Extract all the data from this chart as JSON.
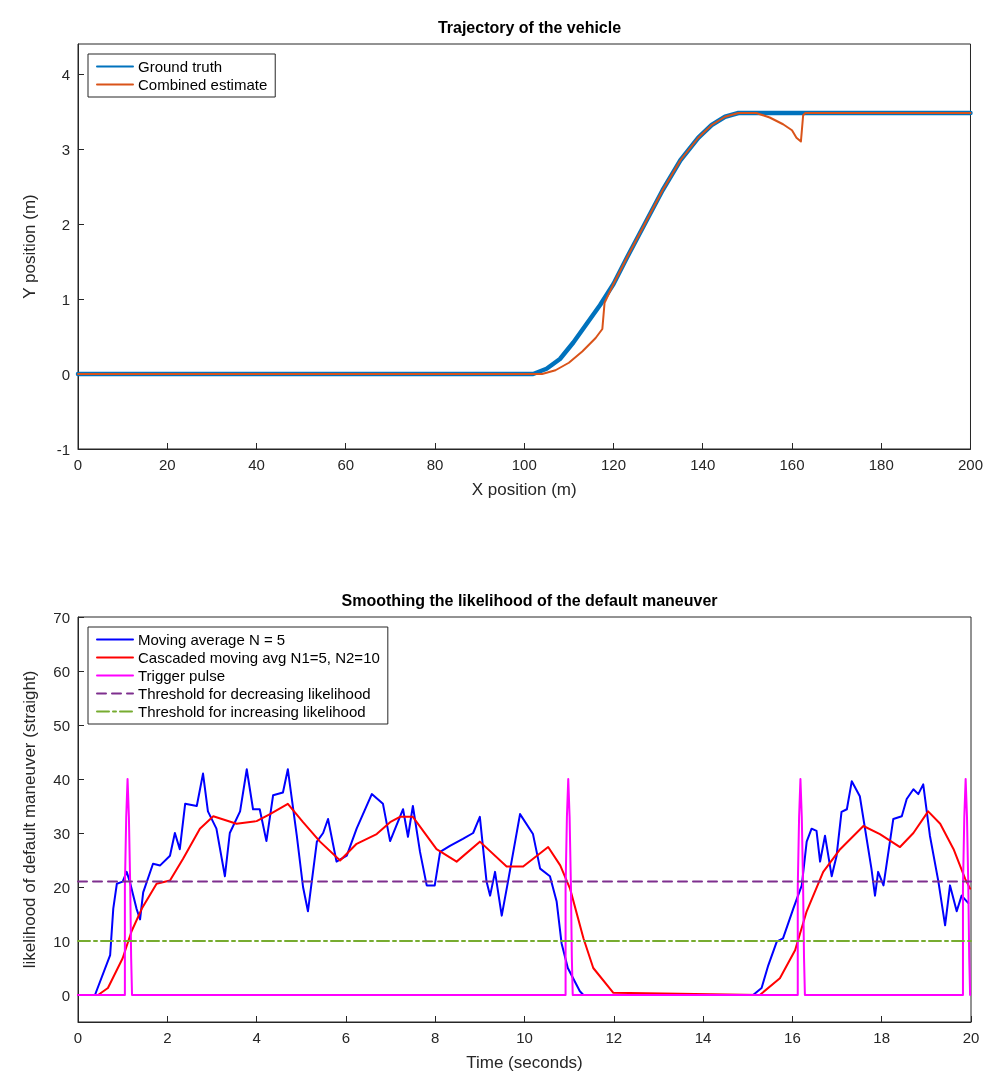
{
  "chart_data": [
    {
      "type": "line",
      "title": "Trajectory of the vehicle",
      "xlabel": "X position (m)",
      "ylabel": "Y position (m)",
      "xlim": [
        0,
        200
      ],
      "ylim": [
        -1,
        4.4
      ],
      "xticks": [
        0,
        20,
        40,
        60,
        80,
        100,
        120,
        140,
        160,
        180,
        200
      ],
      "yticks": [
        -1,
        0,
        1,
        2,
        3,
        4
      ],
      "legend": "top left",
      "grid": false,
      "line_style": "solid",
      "series": [
        {
          "name": "Ground truth",
          "color": "#0072bd",
          "x": [
            0,
            102,
            105,
            108,
            111,
            114,
            117,
            120,
            123,
            127,
            131,
            135,
            139,
            142,
            145,
            148,
            200
          ],
          "values": [
            0,
            0,
            0.07,
            0.2,
            0.42,
            0.67,
            0.92,
            1.2,
            1.55,
            2.0,
            2.45,
            2.85,
            3.15,
            3.32,
            3.43,
            3.48,
            3.48
          ]
        },
        {
          "name": "Combined estimate",
          "color": "#d95319",
          "x": [
            0,
            104,
            107,
            110,
            113,
            116,
            117.5,
            118,
            120,
            123,
            127,
            131,
            135,
            139,
            142,
            145,
            148,
            152,
            155,
            158,
            160,
            161,
            162,
            162.5,
            163,
            200
          ],
          "values": [
            0,
            0,
            0.05,
            0.15,
            0.3,
            0.48,
            0.6,
            0.95,
            1.2,
            1.55,
            2.0,
            2.45,
            2.85,
            3.15,
            3.32,
            3.43,
            3.48,
            3.48,
            3.42,
            3.33,
            3.25,
            3.15,
            3.1,
            3.45,
            3.48,
            3.48
          ]
        }
      ]
    },
    {
      "type": "line",
      "title": "Smoothing the likelihood of the default maneuver",
      "xlabel": "Time (seconds)",
      "ylabel": "likelihood of default maneuver (straight)",
      "xlim": [
        0,
        20
      ],
      "ylim": [
        -5,
        70
      ],
      "xticks": [
        0,
        2,
        4,
        6,
        8,
        10,
        12,
        14,
        16,
        18,
        20
      ],
      "yticks": [
        0,
        10,
        20,
        30,
        40,
        50,
        60,
        70
      ],
      "legend": "top left",
      "grid": false,
      "series": [
        {
          "name": "Moving average N = 5",
          "color": "#0000ff",
          "line_style": "solid",
          "x": [
            0,
            0.38,
            0.72,
            0.79,
            0.87,
            1.0,
            1.09,
            1.16,
            1.31,
            1.39,
            1.46,
            1.68,
            1.84,
            2.06,
            2.17,
            2.28,
            2.4,
            2.66,
            2.8,
            2.91,
            3.1,
            3.29,
            3.4,
            3.63,
            3.78,
            3.92,
            4.07,
            4.22,
            4.37,
            4.59,
            4.7,
            4.9,
            5.04,
            5.15,
            5.35,
            5.49,
            5.6,
            5.79,
            6.02,
            6.24,
            6.58,
            6.83,
            6.99,
            7.28,
            7.39,
            7.5,
            7.66,
            7.81,
            7.99,
            8.11,
            8.33,
            8.62,
            8.85,
            9.0,
            9.15,
            9.23,
            9.34,
            9.49,
            9.63,
            9.9,
            10.19,
            10.35,
            10.57,
            10.72,
            10.83,
            10.97,
            11.24,
            11.32,
            15.12,
            15.31,
            15.46,
            15.65,
            15.79,
            16.02,
            16.21,
            16.32,
            16.43,
            16.54,
            16.62,
            16.73,
            16.88,
            16.99,
            17.1,
            17.22,
            17.33,
            17.51,
            17.77,
            17.85,
            17.92,
            18.04,
            18.26,
            18.45,
            18.56,
            18.71,
            18.82,
            18.93,
            19.08,
            19.27,
            19.42,
            19.53,
            19.68,
            19.79,
            19.94
          ],
          "values": [
            0,
            0,
            7.4,
            16,
            20.6,
            21,
            22.8,
            21,
            16,
            14,
            19,
            24.3,
            24,
            25.8,
            30,
            27,
            35.4,
            35,
            41,
            34,
            30.8,
            22,
            30,
            34,
            41.8,
            34.4,
            34.4,
            28.5,
            37,
            37.5,
            41.8,
            29.5,
            20,
            15.5,
            28.4,
            30,
            32.6,
            24.7,
            25.8,
            30.8,
            37.2,
            35.4,
            28.5,
            34.4,
            29.3,
            35,
            26.5,
            20.3,
            20.3,
            26.5,
            27.6,
            28.9,
            30,
            33,
            21,
            18.4,
            22.8,
            14.7,
            21,
            33.5,
            29.8,
            23.4,
            22,
            17.3,
            9.6,
            5,
            0.7,
            0,
            0,
            1.3,
            5.5,
            9.9,
            10.5,
            16,
            20.3,
            28.4,
            30.8,
            30.4,
            24.7,
            29.5,
            22,
            25.8,
            33.9,
            34.4,
            39.6,
            36.8,
            23.4,
            18.4,
            22.8,
            20.3,
            32.6,
            33.1,
            36.3,
            38.1,
            37.2,
            39,
            29.5,
            21,
            12.9,
            20.3,
            15.5,
            18.4,
            17
          ]
        },
        {
          "name": "Cascaded moving avg N1=5, N2=10",
          "color": "#ff0000",
          "line_style": "solid",
          "x": [
            0,
            0.45,
            0.67,
            1.0,
            1.2,
            1.43,
            1.76,
            2.06,
            2.35,
            2.73,
            3.03,
            3.55,
            4.0,
            4.3,
            4.7,
            5.04,
            5.42,
            5.87,
            6.24,
            6.69,
            6.99,
            7.21,
            7.5,
            8.03,
            8.48,
            9.0,
            9.6,
            9.97,
            10.53,
            10.8,
            11.02,
            11.32,
            11.54,
            11.99,
            15.27,
            15.72,
            16.06,
            16.32,
            16.69,
            17.07,
            17.59,
            17.96,
            18.41,
            18.71,
            19.04,
            19.31,
            19.61,
            19.87,
            19.98
          ],
          "values": [
            0,
            0,
            1.3,
            6.8,
            11.8,
            16,
            20.6,
            21.2,
            25.2,
            30.8,
            33.1,
            31.7,
            32.2,
            33.5,
            35.4,
            32,
            28.4,
            24.9,
            28,
            29.8,
            32,
            33,
            33,
            27,
            24.7,
            28.4,
            23.8,
            23.8,
            27.4,
            24,
            19.7,
            10.5,
            5,
            0.4,
            0,
            3.1,
            8.3,
            15.5,
            22.8,
            27,
            31.3,
            29.8,
            27.4,
            30,
            34,
            31.7,
            27,
            21.5,
            19.7
          ]
        },
        {
          "name": "Trigger pulse",
          "color": "#ff00ff",
          "line_style": "solid",
          "x": [
            0,
            1.05,
            1.05,
            1.08,
            1.11,
            1.14,
            1.17,
            1.19,
            1.21,
            10.92,
            10.92,
            10.95,
            10.98,
            11.01,
            11.04,
            11.06,
            11.08,
            16.12,
            16.12,
            16.15,
            16.18,
            16.21,
            16.24,
            16.26,
            16.28,
            19.82,
            19.82,
            19.85,
            19.88,
            19.91,
            19.94,
            19.96,
            19.98
          ],
          "values": [
            0,
            0,
            20,
            33,
            40,
            33,
            20,
            7,
            0,
            0,
            20,
            33,
            40,
            33,
            20,
            7,
            0,
            0,
            20,
            33,
            40,
            33,
            20,
            7,
            0,
            0,
            20,
            33,
            40,
            33,
            20,
            7,
            0
          ]
        },
        {
          "name": "Threshold for decreasing likelihood",
          "color": "#7e2f8e",
          "line_style": "dashed",
          "x": [
            0,
            20
          ],
          "values": [
            21,
            21
          ]
        },
        {
          "name": "Threshold for increasing likelihood",
          "color": "#77ac30",
          "line_style": "dashdot",
          "x": [
            0,
            20
          ],
          "values": [
            10,
            10
          ]
        }
      ]
    }
  ]
}
